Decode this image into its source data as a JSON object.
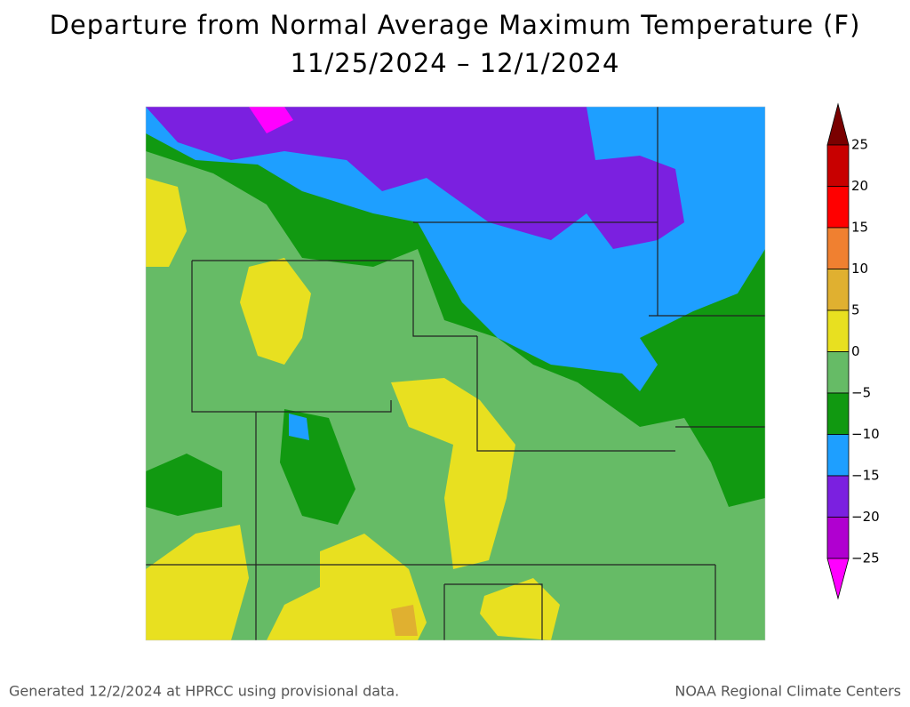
{
  "title": "Departure from Normal Average Maximum Temperature (F)",
  "subtitle": "11/25/2024 – 12/1/2024",
  "legend": {
    "ticks": [
      "25",
      "20",
      "15",
      "10",
      "5",
      "0",
      "−5",
      "−10",
      "−15",
      "−20",
      "−25"
    ],
    "colors": [
      "#7a0000",
      "#c80000",
      "#ff0000",
      "#f08030",
      "#e0b030",
      "#e8e020",
      "#66bb66",
      "#119911",
      "#1e9fff",
      "#7b20e0",
      "#b000d0",
      "#ff00ff"
    ]
  },
  "footer": {
    "left": "Generated 12/2/2024 at HPRCC using provisional data.",
    "right": "NOAA Regional Climate Centers"
  }
}
